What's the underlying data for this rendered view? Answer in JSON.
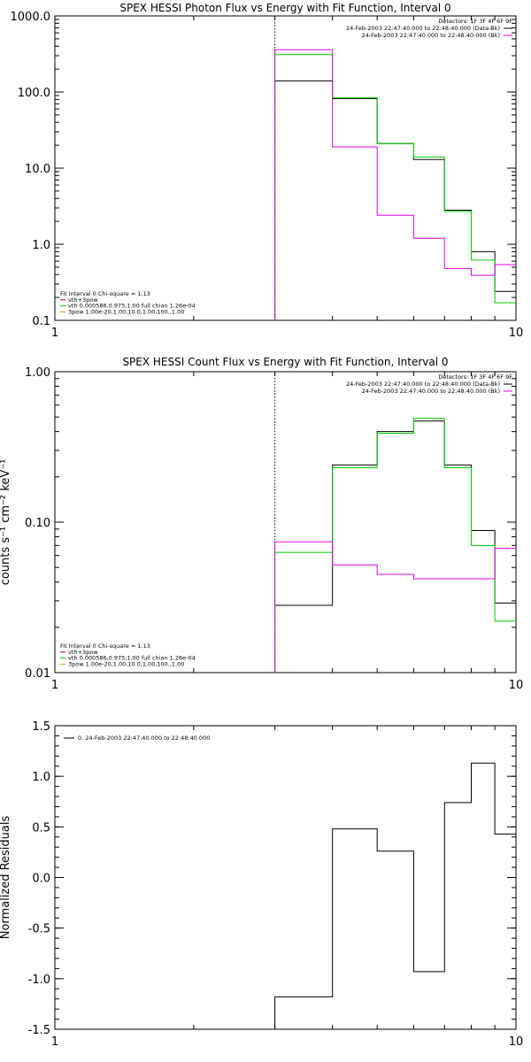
{
  "chart_data": [
    {
      "type": "line",
      "title": "SPEX HESSI Photon Flux vs Energy with Fit Function, Interval 0",
      "ylabel": "",
      "xscale": "log",
      "yscale": "log",
      "xlim": [
        1,
        10
      ],
      "ylim": [
        0.1,
        1000
      ],
      "xticks": [
        "1",
        "10"
      ],
      "yticks": [
        {
          "v": 1000,
          "label": "1000.0"
        },
        {
          "v": 100,
          "label": "100.0"
        },
        {
          "v": 10,
          "label": "10.0"
        },
        {
          "v": 1,
          "label": "1.0"
        },
        {
          "v": 0.1,
          "label": "0.1"
        }
      ],
      "marker_line_x": 3,
      "legend_top": [
        {
          "text": "Detectors: 1F 3F 4F 6F 9F",
          "color": ""
        },
        {
          "text": "24-Feb-2003 22:47:40.000 to 22:48:40.000 (Data-Bk)",
          "color": "#000000"
        },
        {
          "text": "24-Feb-2003 22:47:40.000 to 22:48:40.000 (Bk)",
          "color": "#e000e0"
        }
      ],
      "legend_bottom": [
        {
          "text": "Fit Interval 0   Chi-square = 1.13",
          "color": ""
        },
        {
          "text": "vth+3pow",
          "color": "#e00000"
        },
        {
          "text": "vth 0.000586,0.975,1.00  full chian 1.26e-04",
          "color": "#00cc00"
        },
        {
          "text": "3pow 1.00e-20,1.00,10.0,1.00,100.,1.00",
          "color": "#e0a000"
        }
      ],
      "edges": [
        3,
        4,
        5,
        6,
        7,
        8,
        9,
        10
      ],
      "series": [
        {
          "key": "data_bk",
          "color": "#000000",
          "values": [
            140,
            82,
            21,
            13,
            2.8,
            0.8,
            0.24
          ]
        },
        {
          "key": "fit",
          "color": "#00cc00",
          "values": [
            310,
            84,
            21,
            14,
            2.7,
            0.62,
            0.17
          ]
        },
        {
          "key": "bk",
          "color": "#e000e0",
          "values": [
            360,
            19,
            2.4,
            1.2,
            0.48,
            0.39,
            0.54
          ]
        }
      ]
    },
    {
      "type": "line",
      "title": "SPEX HESSI Count Flux vs Energy with Fit Function, Interval 0",
      "ylabel": "counts s⁻¹ cm⁻² keV⁻¹",
      "xscale": "log",
      "yscale": "log",
      "xlim": [
        1,
        10
      ],
      "ylim": [
        0.01,
        1
      ],
      "xticks": [
        "1",
        "10"
      ],
      "yticks": [
        {
          "v": 1,
          "label": "1.00"
        },
        {
          "v": 0.1,
          "label": "0.10"
        },
        {
          "v": 0.01,
          "label": "0.01"
        }
      ],
      "marker_line_x": 3,
      "legend_top": [
        {
          "text": "Detectors: 1F 3F 4F 6F 9F",
          "color": ""
        },
        {
          "text": "24-Feb-2003 22:47:40.000 to 22:48:40.000 (Data-Bk)",
          "color": "#000000"
        },
        {
          "text": "24-Feb-2003 22:47:40.000 to 22:48:40.000 (Bk)",
          "color": "#e000e0"
        }
      ],
      "legend_bottom": [
        {
          "text": "Fit Interval 0   Chi-square = 1.13",
          "color": ""
        },
        {
          "text": "vth+3pow",
          "color": "#e00000"
        },
        {
          "text": "vth 0.000586,0.975,1.00  full chian 1.26e-04",
          "color": "#00cc00"
        },
        {
          "text": "3pow 1.00e-20,1.00,10.0,1.00,100.,1.00",
          "color": "#e0a000"
        }
      ],
      "edges": [
        3,
        4,
        5,
        6,
        7,
        8,
        9,
        10
      ],
      "series": [
        {
          "key": "data_bk",
          "color": "#000000",
          "values": [
            0.028,
            0.24,
            0.4,
            0.47,
            0.24,
            0.088,
            0.029
          ]
        },
        {
          "key": "fit",
          "color": "#00cc00",
          "values": [
            0.063,
            0.23,
            0.39,
            0.49,
            0.23,
            0.07,
            0.022
          ]
        },
        {
          "key": "bk",
          "color": "#e000e0",
          "values": [
            0.074,
            0.052,
            0.045,
            0.042,
            0.042,
            0.042,
            0.067
          ]
        }
      ]
    },
    {
      "type": "line",
      "title": "",
      "ylabel": "Normalized Residuals",
      "xscale": "log",
      "yscale": "linear",
      "xlim": [
        1,
        10
      ],
      "ylim": [
        -1.5,
        1.5
      ],
      "xticks": [
        "1",
        "10"
      ],
      "yticks": [
        {
          "v": 1.5,
          "label": "1.5"
        },
        {
          "v": 1.0,
          "label": "1.0"
        },
        {
          "v": 0.5,
          "label": "0.5"
        },
        {
          "v": 0.0,
          "label": "0.0"
        },
        {
          "v": -0.5,
          "label": "-0.5"
        },
        {
          "v": -1.0,
          "label": "-1.0"
        },
        {
          "v": -1.5,
          "label": "-1.5"
        }
      ],
      "legend_top_left": [
        {
          "text": "0. 24-Feb-2003 22:47:40.000 to 22:48:40.000",
          "color": "#000000"
        }
      ],
      "edges": [
        3,
        4,
        5,
        6,
        7,
        8,
        9,
        10
      ],
      "series": [
        {
          "key": "residuals",
          "color": "#000000",
          "values": [
            -1.18,
            0.48,
            0.26,
            -0.93,
            0.74,
            1.13,
            0.43
          ]
        }
      ]
    }
  ]
}
